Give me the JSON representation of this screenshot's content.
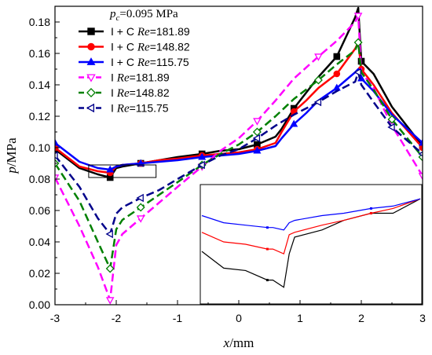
{
  "chart_data": {
    "type": "line",
    "xlabel": "x/mm",
    "ylabel": "p/MPa",
    "xlim": [
      -3,
      3
    ],
    "ylim": [
      0,
      0.19
    ],
    "xticks": [
      "-3",
      "-2",
      "-1",
      "0",
      "1",
      "2",
      "3"
    ],
    "yticks": [
      "0.00",
      "0.02",
      "0.04",
      "0.06",
      "0.08",
      "0.10",
      "0.12",
      "0.14",
      "0.16",
      "0.18"
    ],
    "legend": {
      "title_var": "p",
      "title_sub": "c",
      "title_val": "=0.095 MPa",
      "placement": "top-left"
    },
    "series": [
      {
        "name": "I + C",
        "re_label": "Re",
        "re_value": "=181.89",
        "color": "#000000",
        "marker": "square",
        "dash": "solid",
        "x": [
          -3.0,
          -2.6,
          -2.3,
          -2.1,
          -2.0,
          -1.9,
          -1.6,
          -1.3,
          -1.0,
          -0.6,
          -0.3,
          0.0,
          0.3,
          0.6,
          0.7,
          0.9,
          1.1,
          1.3,
          1.6,
          1.9,
          1.95,
          2.0,
          2.2,
          2.5,
          3.0
        ],
        "y": [
          0.099,
          0.087,
          0.083,
          0.081,
          0.087,
          0.088,
          0.09,
          0.092,
          0.094,
          0.096,
          0.098,
          0.099,
          0.102,
          0.107,
          0.112,
          0.125,
          0.135,
          0.145,
          0.158,
          0.183,
          0.189,
          0.155,
          0.147,
          0.126,
          0.101
        ]
      },
      {
        "name": "I + C",
        "re_label": "Re",
        "re_value": "=148.82",
        "color": "#ff0000",
        "marker": "circle",
        "dash": "solid",
        "x": [
          -3.0,
          -2.6,
          -2.3,
          -2.1,
          -2.0,
          -1.9,
          -1.6,
          -1.3,
          -1.0,
          -0.6,
          -0.3,
          0.0,
          0.3,
          0.6,
          0.7,
          0.9,
          1.1,
          1.3,
          1.6,
          1.9,
          1.95,
          2.0,
          2.2,
          2.5,
          3.0
        ],
        "y": [
          0.1,
          0.088,
          0.085,
          0.084,
          0.088,
          0.089,
          0.09,
          0.092,
          0.093,
          0.095,
          0.096,
          0.097,
          0.099,
          0.103,
          0.11,
          0.123,
          0.13,
          0.138,
          0.147,
          0.163,
          0.167,
          0.15,
          0.14,
          0.122,
          0.1
        ]
      },
      {
        "name": "I + C",
        "re_label": "Re",
        "re_value": "=115.75",
        "color": "#0000ff",
        "marker": "triangle-up",
        "dash": "solid",
        "x": [
          -3.0,
          -2.6,
          -2.3,
          -2.1,
          -2.0,
          -1.9,
          -1.6,
          -1.3,
          -1.0,
          -0.6,
          -0.3,
          0.0,
          0.3,
          0.6,
          0.7,
          0.9,
          1.1,
          1.3,
          1.6,
          1.9,
          1.95,
          2.0,
          2.2,
          2.5,
          3.0
        ],
        "y": [
          0.103,
          0.091,
          0.087,
          0.086,
          0.088,
          0.089,
          0.09,
          0.091,
          0.092,
          0.094,
          0.095,
          0.096,
          0.098,
          0.101,
          0.106,
          0.115,
          0.122,
          0.13,
          0.138,
          0.148,
          0.15,
          0.144,
          0.136,
          0.121,
          0.103
        ]
      },
      {
        "name": "I",
        "re_label": "Re",
        "re_value": "=181.89",
        "color": "#ff00ff",
        "marker": "triangle-down-open",
        "dash": "dashed",
        "x": [
          -3.0,
          -2.6,
          -2.3,
          -2.1,
          -2.0,
          -1.9,
          -1.6,
          -1.3,
          -1.0,
          -0.6,
          -0.3,
          0.0,
          0.3,
          0.6,
          0.9,
          1.3,
          1.6,
          1.9,
          1.95,
          2.0,
          2.2,
          2.5,
          3.0
        ],
        "y": [
          0.081,
          0.05,
          0.024,
          0.003,
          0.038,
          0.045,
          0.055,
          0.065,
          0.075,
          0.088,
          0.098,
          0.106,
          0.117,
          0.13,
          0.144,
          0.158,
          0.168,
          0.18,
          0.184,
          0.148,
          0.138,
          0.114,
          0.082
        ]
      },
      {
        "name": "I",
        "re_label": "Re",
        "re_value": "=148.82",
        "color": "#008000",
        "marker": "diamond-open",
        "dash": "dashed",
        "x": [
          -3.0,
          -2.6,
          -2.3,
          -2.1,
          -2.0,
          -1.9,
          -1.6,
          -1.3,
          -1.0,
          -0.6,
          -0.3,
          0.0,
          0.3,
          0.6,
          0.9,
          1.3,
          1.6,
          1.9,
          1.95,
          2.0,
          2.2,
          2.5,
          3.0
        ],
        "y": [
          0.09,
          0.066,
          0.04,
          0.023,
          0.048,
          0.054,
          0.062,
          0.07,
          0.078,
          0.089,
          0.096,
          0.102,
          0.11,
          0.12,
          0.131,
          0.143,
          0.153,
          0.162,
          0.167,
          0.148,
          0.137,
          0.118,
          0.094
        ]
      },
      {
        "name": "I",
        "re_label": "Re",
        "re_value": "=115.75",
        "color": "#00008b",
        "marker": "triangle-left-open",
        "dash": "dashed",
        "x": [
          -3.0,
          -2.6,
          -2.3,
          -2.1,
          -2.0,
          -1.9,
          -1.6,
          -1.3,
          -1.0,
          -0.6,
          -0.3,
          0.0,
          0.3,
          0.6,
          0.9,
          1.3,
          1.6,
          1.9,
          1.95,
          2.0,
          2.2,
          2.5,
          3.0
        ],
        "y": [
          0.095,
          0.075,
          0.055,
          0.045,
          0.058,
          0.062,
          0.068,
          0.073,
          0.08,
          0.089,
          0.095,
          0.099,
          0.106,
          0.114,
          0.121,
          0.129,
          0.136,
          0.142,
          0.148,
          0.14,
          0.129,
          0.113,
          0.096
        ]
      }
    ],
    "inset": {
      "type": "line",
      "zoom_of": {
        "x": [
          -2.45,
          -1.35
        ],
        "y": [
          0.081,
          0.089
        ]
      },
      "series": [
        {
          "color": "#000000",
          "x": [
            0.0,
            0.2,
            0.4,
            0.6,
            0.65,
            0.75,
            0.8,
            0.85,
            1.1,
            1.3,
            1.55,
            1.75,
            2.0
          ],
          "y": [
            0.0827,
            0.082,
            0.0819,
            0.0815,
            0.0815,
            0.0812,
            0.0826,
            0.0833,
            0.0836,
            0.084,
            0.0843,
            0.0843,
            0.0849
          ]
        },
        {
          "color": "#ff0000",
          "x": [
            0.0,
            0.2,
            0.4,
            0.6,
            0.65,
            0.75,
            0.8,
            0.85,
            1.1,
            1.3,
            1.55,
            1.75,
            2.0
          ],
          "y": [
            0.0835,
            0.0831,
            0.083,
            0.0828,
            0.0828,
            0.0826,
            0.0834,
            0.0835,
            0.0838,
            0.084,
            0.0843,
            0.0845,
            0.0849
          ]
        },
        {
          "color": "#0000ff",
          "x": [
            0.0,
            0.2,
            0.4,
            0.6,
            0.65,
            0.75,
            0.8,
            0.85,
            1.1,
            1.3,
            1.55,
            1.75,
            2.0
          ],
          "y": [
            0.0842,
            0.0839,
            0.0838,
            0.0837,
            0.0837,
            0.0836,
            0.0839,
            0.084,
            0.0842,
            0.0843,
            0.0845,
            0.0846,
            0.0849
          ]
        }
      ]
    }
  }
}
